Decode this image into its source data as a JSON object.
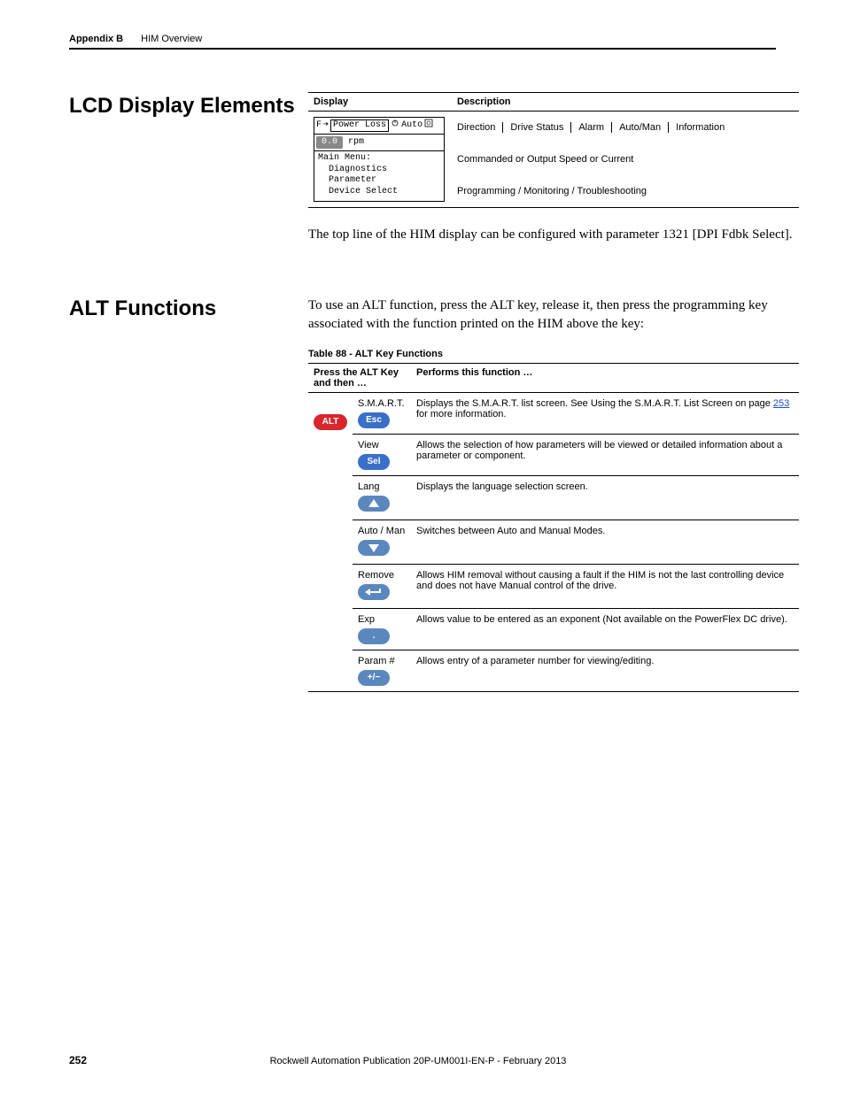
{
  "header": {
    "appendix": "Appendix B",
    "title": "HIM Overview"
  },
  "section_lcd": {
    "heading": "LCD Display Elements",
    "table": {
      "col_display": "Display",
      "col_description": "Description",
      "lcd": {
        "top_f": "F",
        "top_arrow": "➔",
        "top_power_loss": "Power Loss",
        "top_auto": "Auto",
        "value": "0.0",
        "unit": "rpm",
        "menu_line1": "Main Menu:",
        "menu_line2": "  Diagnostics",
        "menu_line3": "  Parameter",
        "menu_line4": "  Device Select"
      },
      "desc1_parts": {
        "direction": "Direction",
        "drive_status": "Drive Status",
        "alarm": "Alarm",
        "auto_man": "Auto/Man",
        "information": "Information"
      },
      "desc2": "Commanded or Output Speed or Current",
      "desc3": "Programming / Monitoring / Troubleshooting"
    },
    "body_para": "The top line of the HIM display can be configured with parameter 1321 [DPI Fdbk Select]."
  },
  "section_alt": {
    "heading": "ALT Functions",
    "body_para": "To use an ALT function, press the ALT key, release it, then press the programming key associated with the function printed on the HIM above the key:",
    "table_caption": "Table 88 - ALT Key Functions",
    "headers": {
      "press": "Press the ALT Key and then …",
      "func": "Performs this function …"
    },
    "alt_key": "ALT",
    "rows": [
      {
        "label": "S.M.A.R.T.",
        "key_text": "Esc",
        "func_pre": "Displays the S.M.A.R.T. list screen. See Using the S.M.A.R.T. List Screen on page ",
        "func_link": "253",
        "func_post": " for more information."
      },
      {
        "label": "View",
        "key_text": "Sel",
        "func": "Allows the selection of how parameters will be viewed or detailed information about a parameter or component."
      },
      {
        "label": "Lang",
        "key_svg": "up",
        "func": "Displays the language selection screen."
      },
      {
        "label": "Auto / Man",
        "key_svg": "down",
        "func": "Switches between Auto and Manual Modes."
      },
      {
        "label": "Remove",
        "key_svg": "enter",
        "func": "Allows HIM removal without causing a fault if the HIM is not the last controlling device and does not have Manual control of the drive."
      },
      {
        "label": "Exp",
        "key_text": ".",
        "key_class": "key-dot",
        "func": "Allows value to be entered as an exponent (Not available on the PowerFlex DC drive)."
      },
      {
        "label": "Param #",
        "key_text": "+/−",
        "key_class": "key-pm",
        "func": "Allows entry of a parameter number for viewing/editing."
      }
    ]
  },
  "footer": {
    "page": "252",
    "pub": "Rockwell Automation Publication 20P-UM001I-EN-P - February 2013"
  },
  "colors": {
    "alt_red": "#d9262e",
    "key_blue": "#3a6fc9",
    "key_blue2": "#5b87bf",
    "link": "#1a4fc9"
  }
}
